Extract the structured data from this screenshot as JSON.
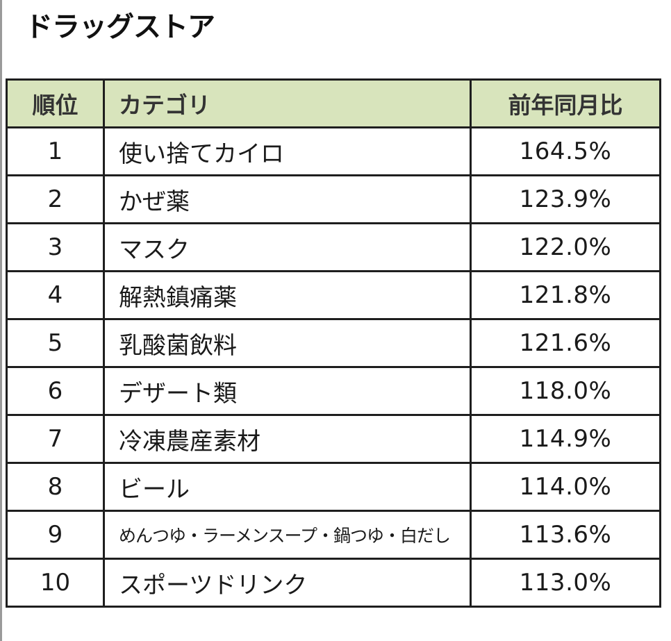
{
  "page": {
    "title": "ドラッグストア"
  },
  "table": {
    "header_bg": "#d8e4bc",
    "columns": {
      "rank": "順位",
      "category": "カテゴリ",
      "yoy": "前年同月比"
    },
    "rows": [
      {
        "rank": "1",
        "category": "使い捨てカイロ",
        "yoy": "164.5%"
      },
      {
        "rank": "2",
        "category": "かぜ薬",
        "yoy": "123.9%"
      },
      {
        "rank": "3",
        "category": "マスク",
        "yoy": "122.0%"
      },
      {
        "rank": "4",
        "category": "解熱鎮痛薬",
        "yoy": "121.8%"
      },
      {
        "rank": "5",
        "category": "乳酸菌飲料",
        "yoy": "121.6%"
      },
      {
        "rank": "6",
        "category": "デザート類",
        "yoy": "118.0%"
      },
      {
        "rank": "7",
        "category": "冷凍農産素材",
        "yoy": "114.9%"
      },
      {
        "rank": "8",
        "category": "ビール",
        "yoy": "114.0%"
      },
      {
        "rank": "9",
        "category": "めんつゆ・ラーメンスープ・鍋つゆ・白だし",
        "yoy": "113.6%"
      },
      {
        "rank": "10",
        "category": "スポーツドリンク",
        "yoy": "113.0%"
      }
    ]
  }
}
